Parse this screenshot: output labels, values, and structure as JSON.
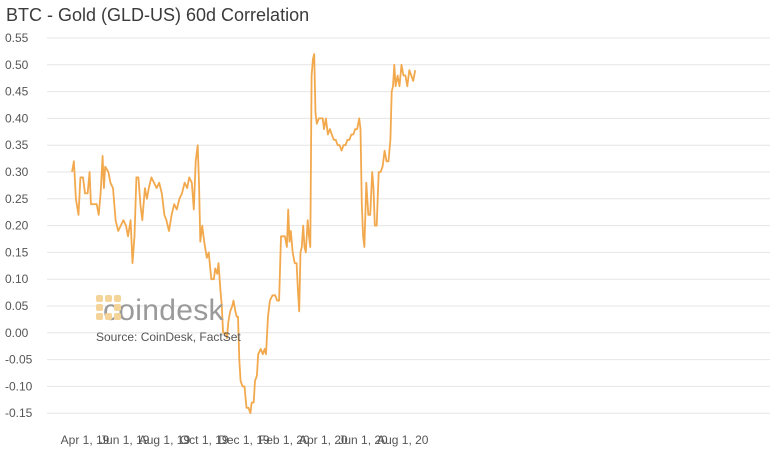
{
  "chart_data": {
    "type": "line",
    "title": "BTC - Gold (GLD-US) 60d Correlation",
    "xlabel": "",
    "ylabel": "",
    "ylim": [
      -0.17,
      0.55
    ],
    "yticks": [
      "0.55",
      "0.50",
      "0.45",
      "0.40",
      "0.35",
      "0.30",
      "0.25",
      "0.20",
      "0.15",
      "0.10",
      "0.05",
      "0.00",
      "-0.05",
      "-0.10",
      "-0.15"
    ],
    "xticks": [
      "Apr 1, 19",
      "Jun 1, 19",
      "Aug 1, 19",
      "Oct 1, 19",
      "Dec 1, 19",
      "Feb 1, 20",
      "Apr 1, 20",
      "Jun 1, 20",
      "Aug 1, 20"
    ],
    "grid": true,
    "series": [
      {
        "color": "#f2a94e",
        "points": [
          [
            "2019-03-12",
            0.3
          ],
          [
            "2019-03-15",
            0.32
          ],
          [
            "2019-03-18",
            0.25
          ],
          [
            "2019-03-22",
            0.22
          ],
          [
            "2019-03-25",
            0.29
          ],
          [
            "2019-03-29",
            0.29
          ],
          [
            "2019-04-01",
            0.26
          ],
          [
            "2019-04-05",
            0.26
          ],
          [
            "2019-04-08",
            0.3
          ],
          [
            "2019-04-10",
            0.24
          ],
          [
            "2019-04-15",
            0.24
          ],
          [
            "2019-04-19",
            0.24
          ],
          [
            "2019-04-22",
            0.22
          ],
          [
            "2019-04-25",
            0.26
          ],
          [
            "2019-04-28",
            0.33
          ],
          [
            "2019-04-30",
            0.27
          ],
          [
            "2019-05-02",
            0.31
          ],
          [
            "2019-05-07",
            0.3
          ],
          [
            "2019-05-10",
            0.28
          ],
          [
            "2019-05-14",
            0.27
          ],
          [
            "2019-05-18",
            0.21
          ],
          [
            "2019-05-22",
            0.19
          ],
          [
            "2019-05-26",
            0.2
          ],
          [
            "2019-05-30",
            0.21
          ],
          [
            "2019-06-03",
            0.2
          ],
          [
            "2019-06-06",
            0.18
          ],
          [
            "2019-06-10",
            0.21
          ],
          [
            "2019-06-13",
            0.13
          ],
          [
            "2019-06-16",
            0.18
          ],
          [
            "2019-06-19",
            0.29
          ],
          [
            "2019-06-22",
            0.29
          ],
          [
            "2019-06-25",
            0.24
          ],
          [
            "2019-06-28",
            0.21
          ],
          [
            "2019-07-02",
            0.27
          ],
          [
            "2019-07-05",
            0.25
          ],
          [
            "2019-07-08",
            0.27
          ],
          [
            "2019-07-12",
            0.29
          ],
          [
            "2019-07-16",
            0.28
          ],
          [
            "2019-07-20",
            0.27
          ],
          [
            "2019-07-24",
            0.28
          ],
          [
            "2019-07-28",
            0.26
          ],
          [
            "2019-08-01",
            0.22
          ],
          [
            "2019-08-04",
            0.21
          ],
          [
            "2019-08-08",
            0.19
          ],
          [
            "2019-08-12",
            0.22
          ],
          [
            "2019-08-16",
            0.24
          ],
          [
            "2019-08-20",
            0.23
          ],
          [
            "2019-08-24",
            0.25
          ],
          [
            "2019-08-28",
            0.26
          ],
          [
            "2019-09-01",
            0.28
          ],
          [
            "2019-09-05",
            0.27
          ],
          [
            "2019-09-08",
            0.29
          ],
          [
            "2019-09-12",
            0.28
          ],
          [
            "2019-09-15",
            0.23
          ],
          [
            "2019-09-18",
            0.32
          ],
          [
            "2019-09-21",
            0.35
          ],
          [
            "2019-09-23",
            0.28
          ],
          [
            "2019-09-25",
            0.17
          ],
          [
            "2019-09-28",
            0.2
          ],
          [
            "2019-10-01",
            0.17
          ],
          [
            "2019-10-05",
            0.14
          ],
          [
            "2019-10-08",
            0.15
          ],
          [
            "2019-10-12",
            0.1
          ],
          [
            "2019-10-16",
            0.1
          ],
          [
            "2019-10-18",
            0.12
          ],
          [
            "2019-10-21",
            0.11
          ],
          [
            "2019-10-23",
            0.13
          ],
          [
            "2019-10-26",
            0.08
          ],
          [
            "2019-10-28",
            0.05
          ],
          [
            "2019-10-30",
            0.0
          ],
          [
            "2019-11-03",
            0.0
          ],
          [
            "2019-11-05",
            -0.01
          ],
          [
            "2019-11-07",
            0.02
          ],
          [
            "2019-11-10",
            0.04
          ],
          [
            "2019-11-13",
            0.05
          ],
          [
            "2019-11-15",
            0.06
          ],
          [
            "2019-11-18",
            0.04
          ],
          [
            "2019-11-20",
            0.03
          ],
          [
            "2019-11-22",
            0.03
          ],
          [
            "2019-11-24",
            -0.05
          ],
          [
            "2019-11-26",
            -0.09
          ],
          [
            "2019-11-29",
            -0.1
          ],
          [
            "2019-12-02",
            -0.1
          ],
          [
            "2019-12-05",
            -0.14
          ],
          [
            "2019-12-08",
            -0.14
          ],
          [
            "2019-12-11",
            -0.15
          ],
          [
            "2019-12-13",
            -0.13
          ],
          [
            "2019-12-16",
            -0.13
          ],
          [
            "2019-12-18",
            -0.09
          ],
          [
            "2019-12-21",
            -0.08
          ],
          [
            "2019-12-23",
            -0.04
          ],
          [
            "2019-12-27",
            -0.03
          ],
          [
            "2019-12-30",
            -0.04
          ],
          [
            "2020-01-02",
            -0.03
          ],
          [
            "2020-01-04",
            -0.04
          ],
          [
            "2020-01-07",
            0.03
          ],
          [
            "2020-01-10",
            0.06
          ],
          [
            "2020-01-14",
            0.07
          ],
          [
            "2020-01-18",
            0.07
          ],
          [
            "2020-01-21",
            0.06
          ],
          [
            "2020-01-24",
            0.06
          ],
          [
            "2020-01-27",
            0.18
          ],
          [
            "2020-01-30",
            0.18
          ],
          [
            "2020-02-02",
            0.18
          ],
          [
            "2020-02-05",
            0.16
          ],
          [
            "2020-02-07",
            0.23
          ],
          [
            "2020-02-09",
            0.17
          ],
          [
            "2020-02-11",
            0.19
          ],
          [
            "2020-02-14",
            0.15
          ],
          [
            "2020-02-17",
            0.13
          ],
          [
            "2020-02-20",
            0.13
          ],
          [
            "2020-02-22",
            0.08
          ],
          [
            "2020-02-24",
            0.04
          ],
          [
            "2020-02-26",
            0.15
          ],
          [
            "2020-02-28",
            0.16
          ],
          [
            "2020-03-01",
            0.2
          ],
          [
            "2020-03-03",
            0.16
          ],
          [
            "2020-03-05",
            0.15
          ],
          [
            "2020-03-08",
            0.21
          ],
          [
            "2020-03-10",
            0.18
          ],
          [
            "2020-03-12",
            0.16
          ],
          [
            "2020-03-14",
            0.48
          ],
          [
            "2020-03-16",
            0.51
          ],
          [
            "2020-03-18",
            0.52
          ],
          [
            "2020-03-20",
            0.41
          ],
          [
            "2020-03-22",
            0.39
          ],
          [
            "2020-03-25",
            0.4
          ],
          [
            "2020-03-28",
            0.4
          ],
          [
            "2020-03-31",
            0.4
          ],
          [
            "2020-04-02",
            0.38
          ],
          [
            "2020-04-05",
            0.4
          ],
          [
            "2020-04-08",
            0.37
          ],
          [
            "2020-04-11",
            0.38
          ],
          [
            "2020-04-14",
            0.37
          ],
          [
            "2020-04-17",
            0.36
          ],
          [
            "2020-04-20",
            0.36
          ],
          [
            "2020-04-23",
            0.35
          ],
          [
            "2020-04-26",
            0.35
          ],
          [
            "2020-04-29",
            0.34
          ],
          [
            "2020-05-02",
            0.35
          ],
          [
            "2020-05-05",
            0.35
          ],
          [
            "2020-05-08",
            0.36
          ],
          [
            "2020-05-11",
            0.36
          ],
          [
            "2020-05-14",
            0.37
          ],
          [
            "2020-05-17",
            0.37
          ],
          [
            "2020-05-20",
            0.38
          ],
          [
            "2020-05-23",
            0.38
          ],
          [
            "2020-05-26",
            0.4
          ],
          [
            "2020-05-28",
            0.38
          ],
          [
            "2020-05-30",
            0.24
          ],
          [
            "2020-06-01",
            0.18
          ],
          [
            "2020-06-03",
            0.16
          ],
          [
            "2020-06-06",
            0.28
          ],
          [
            "2020-06-09",
            0.22
          ],
          [
            "2020-06-12",
            0.22
          ],
          [
            "2020-06-15",
            0.3
          ],
          [
            "2020-06-17",
            0.27
          ],
          [
            "2020-06-19",
            0.2
          ],
          [
            "2020-06-22",
            0.2
          ],
          [
            "2020-06-25",
            0.3
          ],
          [
            "2020-06-28",
            0.3
          ],
          [
            "2020-07-01",
            0.31
          ],
          [
            "2020-07-04",
            0.34
          ],
          [
            "2020-07-07",
            0.32
          ],
          [
            "2020-07-10",
            0.32
          ],
          [
            "2020-07-13",
            0.36
          ],
          [
            "2020-07-15",
            0.45
          ],
          [
            "2020-07-17",
            0.46
          ],
          [
            "2020-07-19",
            0.5
          ],
          [
            "2020-07-21",
            0.46
          ],
          [
            "2020-07-24",
            0.48
          ],
          [
            "2020-07-27",
            0.46
          ],
          [
            "2020-07-30",
            0.5
          ],
          [
            "2020-08-02",
            0.48
          ],
          [
            "2020-08-05",
            0.48
          ],
          [
            "2020-08-08",
            0.46
          ],
          [
            "2020-08-11",
            0.49
          ],
          [
            "2020-08-14",
            0.48
          ],
          [
            "2020-08-17",
            0.47
          ],
          [
            "2020-08-20",
            0.49
          ]
        ]
      }
    ]
  },
  "watermark": {
    "brand": "coindesk",
    "source": "Source: CoinDesk, FactSet"
  }
}
